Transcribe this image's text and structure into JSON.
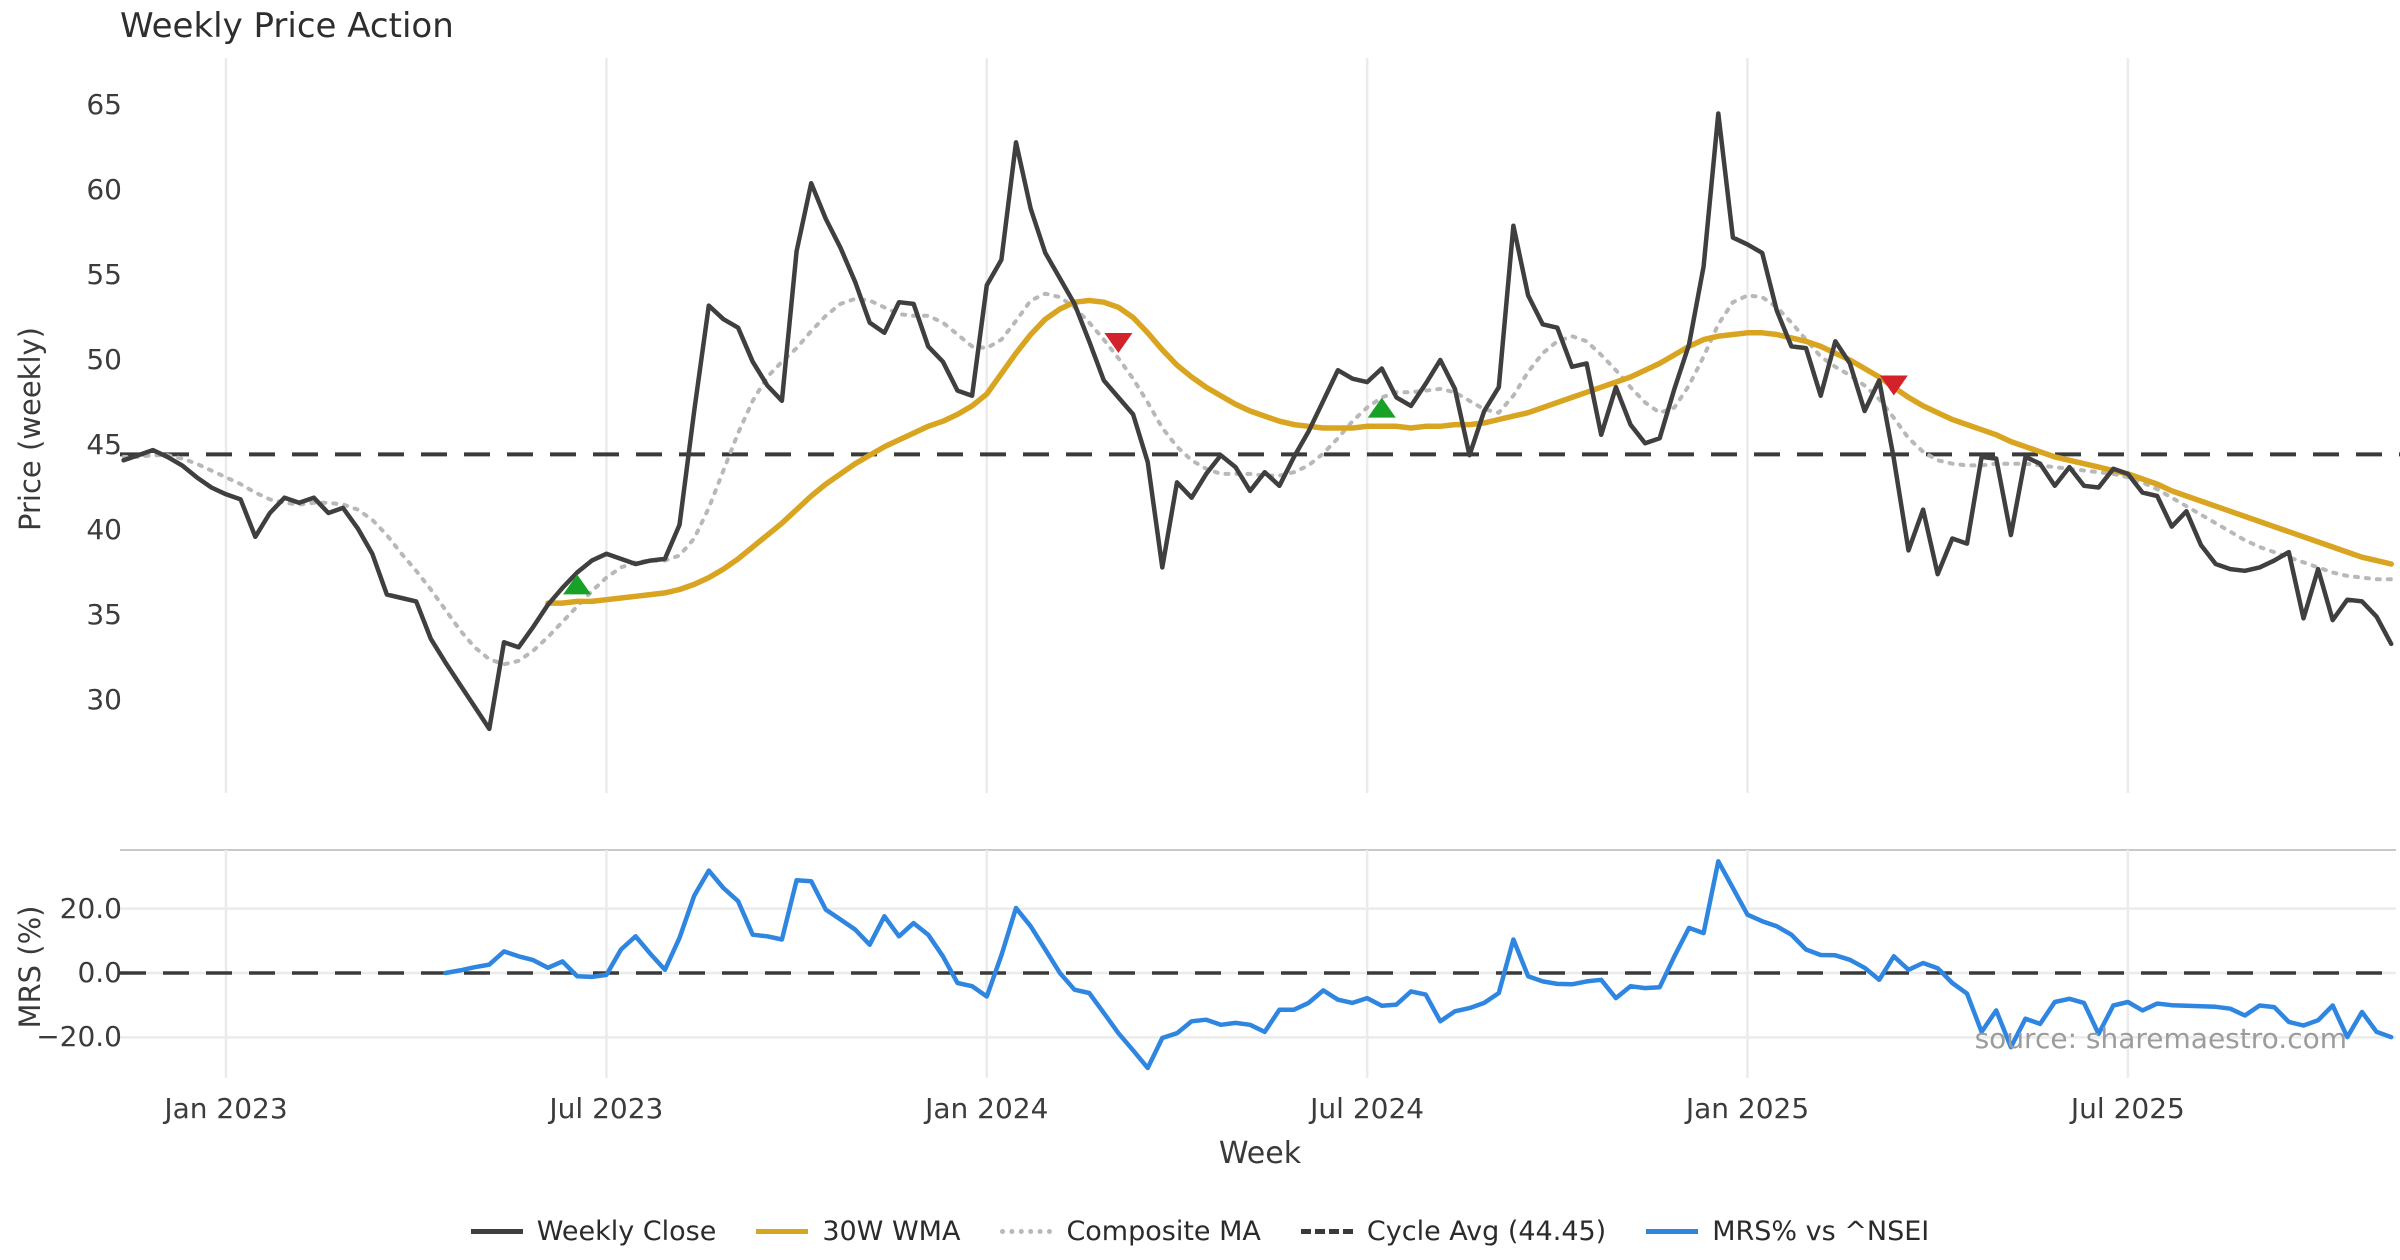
{
  "title": "Weekly Price Action",
  "watermark": "source: sharemaestro.com",
  "colors": {
    "close": "#3f3f3f",
    "wma": "#d9a521",
    "composite": "#b8b8b8",
    "cycle_dash": "#3a3a3a",
    "mrs_blue": "#2f86e0",
    "buy_marker": "#18a127",
    "sell_marker": "#d3222a",
    "gridline": "#ebebeb",
    "panel_spine": "#c9c9c9",
    "tick_text": "#3c3c3c",
    "watermark_text": "#9c9c9c"
  },
  "legend": {
    "items": [
      {
        "label": "Weekly Close",
        "style": "solid",
        "color": "#3f3f3f"
      },
      {
        "label": "30W WMA",
        "style": "solid",
        "color": "#d9a521"
      },
      {
        "label": "Composite MA",
        "style": "dotted",
        "color": "#b8b8b8"
      },
      {
        "label": "Cycle Avg (44.45)",
        "style": "dashed",
        "color": "#3a3a3a"
      },
      {
        "label": "MRS% vs ^NSEI",
        "style": "solid",
        "color": "#2f86e0"
      }
    ]
  },
  "chart_data": [
    {
      "type": "line",
      "panel": "price",
      "title": "Weekly Price Action",
      "xlabel": "Week",
      "ylabel": "Price (weekly)",
      "ylim": [
        24.5,
        66.4
      ],
      "yticks": [
        30,
        35,
        40,
        45,
        50,
        55,
        60,
        65
      ],
      "xticks": [
        {
          "week": 7,
          "label": "Jan 2023"
        },
        {
          "week": 33,
          "label": "Jul 2023"
        },
        {
          "week": 59,
          "label": "Jan 2024"
        },
        {
          "week": 85,
          "label": "Jul 2024"
        },
        {
          "week": 111,
          "label": "Jan 2025"
        },
        {
          "week": 137,
          "label": "Jul 2025"
        }
      ],
      "grid": "vertical",
      "legend_position": "bottom-center",
      "series": [
        {
          "name": "Weekly Close",
          "start_week": 0,
          "values": [
            44.1,
            44.4,
            44.7,
            44.3,
            43.8,
            43.1,
            42.5,
            42.1,
            41.8,
            39.6,
            41.0,
            41.9,
            41.6,
            41.9,
            41.0,
            41.3,
            40.1,
            38.6,
            36.2,
            36.0,
            35.8,
            33.6,
            32.2,
            30.9,
            29.6,
            28.3,
            33.4,
            33.1,
            34.3,
            35.6,
            36.6,
            37.5,
            38.2,
            38.6,
            38.3,
            38.0,
            38.2,
            38.3,
            40.3,
            47.0,
            53.2,
            52.4,
            51.9,
            49.9,
            48.5,
            47.6,
            56.4,
            60.4,
            58.3,
            56.6,
            54.6,
            52.2,
            51.6,
            53.4,
            53.3,
            50.8,
            49.9,
            48.2,
            47.9,
            54.4,
            55.9,
            62.8,
            58.9,
            56.3,
            54.8,
            53.3,
            51.1,
            48.8,
            47.8,
            46.8,
            44.0,
            37.8,
            42.8,
            41.9,
            43.3,
            44.4,
            43.7,
            42.3,
            43.4,
            42.6,
            44.3,
            45.8,
            47.6,
            49.4,
            48.9,
            48.7,
            49.5,
            47.8,
            47.3,
            48.6,
            50.0,
            48.3,
            44.4,
            47.0,
            48.4,
            57.9,
            53.8,
            52.1,
            51.9,
            49.6,
            49.8,
            45.6,
            48.4,
            46.2,
            45.1,
            45.4,
            48.3,
            50.9,
            55.5,
            64.5,
            57.2,
            56.8,
            56.3,
            52.9,
            50.8,
            50.7,
            47.9,
            51.1,
            49.8,
            47.0,
            48.8,
            44.2,
            38.8,
            41.2,
            37.4,
            39.5,
            39.2,
            44.3,
            44.2,
            39.7,
            44.3,
            43.9,
            42.6,
            43.7,
            42.6,
            42.5,
            43.6,
            43.3,
            42.2,
            42.0,
            40.2,
            41.1,
            39.1,
            38.0,
            37.7,
            37.6,
            37.8,
            38.2,
            38.7,
            34.8,
            37.7,
            34.7,
            35.9,
            35.8,
            34.9,
            33.3
          ]
        },
        {
          "name": "30W WMA",
          "start_week": 29,
          "values": [
            35.7,
            35.7,
            35.8,
            35.8,
            35.9,
            36.0,
            36.1,
            36.2,
            36.3,
            36.5,
            36.8,
            37.2,
            37.7,
            38.3,
            39.0,
            39.7,
            40.4,
            41.2,
            42.0,
            42.7,
            43.3,
            43.9,
            44.4,
            44.9,
            45.3,
            45.7,
            46.1,
            46.4,
            46.8,
            47.3,
            48.0,
            49.2,
            50.4,
            51.5,
            52.4,
            53.0,
            53.4,
            53.5,
            53.4,
            53.1,
            52.5,
            51.6,
            50.6,
            49.7,
            49.0,
            48.4,
            47.9,
            47.4,
            47.0,
            46.7,
            46.4,
            46.2,
            46.1,
            46.0,
            46.0,
            46.0,
            46.1,
            46.1,
            46.1,
            46.0,
            46.1,
            46.1,
            46.2,
            46.2,
            46.3,
            46.5,
            46.7,
            46.9,
            47.2,
            47.5,
            47.8,
            48.1,
            48.4,
            48.7,
            49.0,
            49.4,
            49.8,
            50.3,
            50.8,
            51.2,
            51.4,
            51.5,
            51.6,
            51.6,
            51.5,
            51.3,
            51.1,
            50.8,
            50.4,
            50.0,
            49.5,
            49.0,
            48.4,
            47.8,
            47.3,
            46.9,
            46.5,
            46.2,
            45.9,
            45.6,
            45.2,
            44.9,
            44.6,
            44.3,
            44.1,
            43.9,
            43.7,
            43.5,
            43.3,
            43.0,
            42.7,
            42.3,
            42.0,
            41.7,
            41.4,
            41.1,
            40.8,
            40.5,
            40.2,
            39.9,
            39.6,
            39.3,
            39.0,
            38.7,
            38.4,
            38.2,
            38.0
          ]
        },
        {
          "name": "Composite MA",
          "start_week": 0,
          "values": [
            44.3,
            44.3,
            44.4,
            44.4,
            44.2,
            43.9,
            43.5,
            43.1,
            42.7,
            42.2,
            41.8,
            41.6,
            41.5,
            41.6,
            41.6,
            41.5,
            41.2,
            40.6,
            39.7,
            38.6,
            37.6,
            36.5,
            35.3,
            34.1,
            33.1,
            32.4,
            32.1,
            32.3,
            32.9,
            33.7,
            34.6,
            35.5,
            36.4,
            37.2,
            37.8,
            38.1,
            38.2,
            38.2,
            38.5,
            39.5,
            41.3,
            43.5,
            45.7,
            47.6,
            49.0,
            49.9,
            50.7,
            51.7,
            52.6,
            53.3,
            53.6,
            53.5,
            53.1,
            52.7,
            52.6,
            52.6,
            52.2,
            51.5,
            50.8,
            50.7,
            51.2,
            52.3,
            53.5,
            53.9,
            53.7,
            53.1,
            52.2,
            51.2,
            50.1,
            48.9,
            47.5,
            46.0,
            44.9,
            44.1,
            43.6,
            43.3,
            43.3,
            43.3,
            43.2,
            43.2,
            43.4,
            43.8,
            44.5,
            45.4,
            46.4,
            47.2,
            47.8,
            48.1,
            48.1,
            48.2,
            48.3,
            48.1,
            47.6,
            47.1,
            46.9,
            47.9,
            49.3,
            50.4,
            51.1,
            51.4,
            51.1,
            50.3,
            49.4,
            48.4,
            47.5,
            46.9,
            47.2,
            48.5,
            50.2,
            52.1,
            53.4,
            53.8,
            53.7,
            53.1,
            52.2,
            51.2,
            50.2,
            49.6,
            49.1,
            48.5,
            47.7,
            46.6,
            45.4,
            44.6,
            44.1,
            43.9,
            43.8,
            43.8,
            43.9,
            43.9,
            43.9,
            43.8,
            43.7,
            43.6,
            43.5,
            43.4,
            43.3,
            43.1,
            42.8,
            42.4,
            41.9,
            41.4,
            40.9,
            40.4,
            39.9,
            39.4,
            39.0,
            38.7,
            38.4,
            38.1,
            37.8,
            37.5,
            37.3,
            37.2,
            37.1,
            37.1
          ]
        },
        {
          "name": "Cycle Avg (44.45)",
          "type": "hline",
          "value": 44.45
        }
      ],
      "markers": {
        "buy": [
          [
            31,
            36.8
          ],
          [
            86,
            47.2
          ]
        ],
        "sell": [
          [
            68,
            51.0
          ],
          [
            121,
            48.5
          ]
        ]
      }
    },
    {
      "type": "line",
      "panel": "mrs",
      "ylabel": "MRS (%)",
      "ylim": [
        -33.5,
        38.5
      ],
      "yticks": [
        {
          "value": 20,
          "label": "20.0"
        },
        {
          "value": 0,
          "label": "0.0"
        },
        {
          "value": -20,
          "label": "−20.0"
        }
      ],
      "zero_line": 0.0,
      "grid": "horizontal",
      "series": [
        {
          "name": "MRS% vs ^NSEI",
          "start_week": 22,
          "values": [
            0.0,
            0.8,
            1.8,
            2.6,
            6.7,
            5.2,
            4.0,
            1.6,
            3.6,
            -1.0,
            -1.2,
            -0.6,
            7.3,
            11.4,
            6.0,
            1.0,
            10.9,
            24.0,
            31.8,
            26.4,
            22.3,
            11.9,
            11.4,
            10.4,
            28.8,
            28.5,
            19.7,
            16.6,
            13.5,
            8.8,
            17.6,
            11.4,
            15.5,
            11.9,
            5.2,
            -3.1,
            -4.1,
            -7.3,
            5.5,
            20.2,
            14.5,
            7.3,
            0.0,
            -5.2,
            -6.2,
            -12.4,
            -18.7,
            -24.0,
            -29.5,
            -20.2,
            -18.7,
            -15.0,
            -14.5,
            -16.1,
            -15.5,
            -16.1,
            -18.3,
            -11.4,
            -11.4,
            -9.3,
            -5.4,
            -8.3,
            -9.3,
            -7.8,
            -10.2,
            -9.8,
            -5.7,
            -6.7,
            -15.0,
            -11.9,
            -10.9,
            -9.3,
            -6.2,
            10.4,
            -1.0,
            -2.6,
            -3.4,
            -3.5,
            -2.6,
            -2.1,
            -7.8,
            -4.1,
            -4.7,
            -4.4,
            5.2,
            14.0,
            12.4,
            34.7,
            26.4,
            18.1,
            16.1,
            14.5,
            11.9,
            7.3,
            5.6,
            5.5,
            4.1,
            1.6,
            -2.1,
            5.2,
            1.0,
            3.1,
            1.5,
            -3.1,
            -6.4,
            -18.3,
            -11.6,
            -23.0,
            -14.2,
            -15.8,
            -9.0,
            -8.0,
            -9.3,
            -18.9,
            -10.1,
            -9.0,
            -11.6,
            -9.5,
            -10.0,
            -10.2,
            -10.3,
            -10.5,
            -11.1,
            -13.2,
            -10.1,
            -10.6,
            -15.2,
            -16.3,
            -14.7,
            -10.1,
            -19.9,
            -12.1,
            -18.3,
            -19.9
          ]
        }
      ]
    }
  ]
}
